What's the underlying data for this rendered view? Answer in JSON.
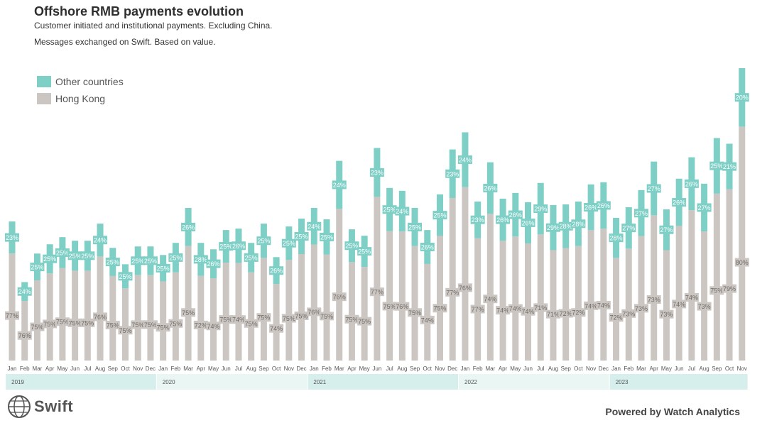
{
  "header": {
    "title": "Offshore RMB payments evolution",
    "subtitle1": "Customer initiated and institutional payments. Excluding China.",
    "subtitle2": "Messages exchanged on Swift. Based on value."
  },
  "legend": {
    "other": "Other countries",
    "hk": "Hong Kong"
  },
  "colors": {
    "other": "#7ecfc6",
    "hk": "#cbc6c2",
    "year_band_a": "#d6efec",
    "year_band_b": "#e9f6f4"
  },
  "chart_data": {
    "type": "bar",
    "stacked": true,
    "units": "relative volume (index, unlabeled axis)",
    "months": [
      "Jan",
      "Feb",
      "Mar",
      "Apr",
      "May",
      "Jun",
      "Jul",
      "Aug",
      "Sep",
      "Oct",
      "Nov",
      "Dec",
      "Jan",
      "Feb",
      "Mar",
      "Apr",
      "May",
      "Jun",
      "Jul",
      "Aug",
      "Sep",
      "Oct",
      "Nov",
      "Dec",
      "Jan",
      "Feb",
      "Mar",
      "Apr",
      "May",
      "Jun",
      "Jul",
      "Aug",
      "Sep",
      "Oct",
      "Nov",
      "Dec",
      "Jan",
      "Feb",
      "Mar",
      "Apr",
      "May",
      "Jun",
      "Jul",
      "Aug",
      "Sep",
      "Oct",
      "Nov",
      "Dec",
      "Jan",
      "Feb",
      "Mar",
      "Apr",
      "May",
      "Jun",
      "Jul",
      "Aug",
      "Sep",
      "Oct",
      "Nov"
    ],
    "years": [
      {
        "label": "2019",
        "start": 0,
        "count": 12
      },
      {
        "label": "2020",
        "start": 12,
        "count": 12
      },
      {
        "label": "2021",
        "start": 24,
        "count": 12
      },
      {
        "label": "2022",
        "start": 36,
        "count": 12
      },
      {
        "label": "2023",
        "start": 48,
        "count": 11
      }
    ],
    "totals": [
      195,
      110,
      150,
      163,
      173,
      168,
      168,
      192,
      158,
      135,
      160,
      160,
      148,
      165,
      214,
      165,
      156,
      183,
      185,
      165,
      192,
      145,
      188,
      199,
      214,
      198,
      280,
      184,
      175,
      298,
      242,
      238,
      214,
      183,
      233,
      296,
      320,
      223,
      278,
      227,
      235,
      222,
      249,
      218,
      219,
      223,
      247,
      250,
      200,
      215,
      239,
      279,
      212,
      255,
      285,
      248,
      312,
      304,
      410
    ],
    "hk_pct": [
      77,
      76,
      75,
      75,
      75,
      75,
      75,
      76,
      75,
      75,
      75,
      75,
      75,
      75,
      75,
      72,
      74,
      75,
      74,
      75,
      75,
      74,
      75,
      75,
      76,
      75,
      76,
      75,
      75,
      77,
      75,
      76,
      75,
      74,
      75,
      77,
      76,
      77,
      74,
      74,
      74,
      74,
      71,
      71,
      72,
      72,
      74,
      74,
      72,
      73,
      73,
      73,
      73,
      74,
      74,
      73,
      75,
      79,
      80
    ],
    "other_pct": [
      23,
      24,
      25,
      25,
      25,
      25,
      25,
      24,
      25,
      25,
      25,
      25,
      25,
      25,
      26,
      28,
      26,
      25,
      26,
      25,
      25,
      26,
      25,
      25,
      24,
      25,
      24,
      25,
      25,
      23,
      25,
      24,
      25,
      26,
      25,
      23,
      24,
      23,
      26,
      26,
      26,
      26,
      29,
      29,
      28,
      28,
      26,
      26,
      28,
      27,
      27,
      27,
      27,
      26,
      26,
      27,
      25,
      21,
      20
    ],
    "xlabel": "",
    "ylabel": ""
  },
  "footer": {
    "brand": "Swift",
    "powered": "Powered by Watch Analytics"
  }
}
